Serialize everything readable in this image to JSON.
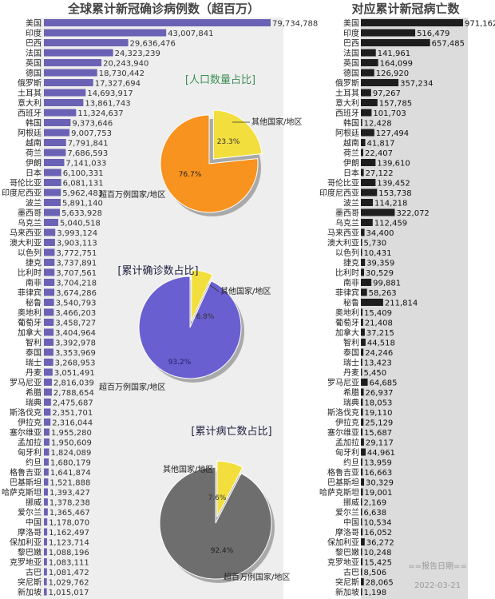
{
  "chart_data": [
    {
      "type": "bar",
      "title": "全球累计新冠确诊病例数（超百万）",
      "orientation": "horizontal",
      "color": "#6a62b4",
      "categories": [
        "美国",
        "印度",
        "巴西",
        "法国",
        "英国",
        "德国",
        "俄罗斯",
        "土耳其",
        "意大利",
        "西班牙",
        "韩国",
        "阿根廷",
        "越南",
        "荷兰",
        "伊朗",
        "日本",
        "哥伦比亚",
        "印度尼西亚",
        "波兰",
        "墨西哥",
        "乌克兰",
        "马来西亚",
        "澳大利亚",
        "以色列",
        "捷克",
        "比利时",
        "南非",
        "菲律宾",
        "秘鲁",
        "奥地利",
        "葡萄牙",
        "加拿大",
        "智利",
        "泰国",
        "瑞士",
        "丹麦",
        "罗马尼亚",
        "希腊",
        "瑞典",
        "斯洛伐克",
        "伊拉克",
        "塞尔维亚",
        "孟加拉",
        "匈牙利",
        "约旦",
        "格鲁吉亚",
        "巴基斯坦",
        "哈萨克斯坦",
        "挪威",
        "爱尔兰",
        "中国",
        "摩洛哥",
        "保加利亚",
        "黎巴嫩",
        "克罗地亚",
        "古巴",
        "突尼斯",
        "新加坡"
      ],
      "values": [
        79734788,
        43007841,
        29636476,
        24323239,
        20243940,
        18730442,
        17327694,
        14693917,
        13861743,
        11324637,
        9373646,
        9007753,
        7791841,
        7686593,
        7141033,
        6100331,
        6081131,
        5962483,
        5891140,
        5633928,
        5040518,
        3993124,
        3903113,
        3772751,
        3737891,
        3707561,
        3704218,
        3674286,
        3540793,
        3466203,
        3458727,
        3404964,
        3392978,
        3353969,
        3268953,
        3051491,
        2816039,
        2788654,
        2475687,
        2351701,
        2316044,
        1955280,
        1950609,
        1824089,
        1680179,
        1641874,
        1521888,
        1393427,
        1378238,
        1365467,
        1178070,
        1162497,
        1123714,
        1088196,
        1083111,
        1081472,
        1029762,
        1015017
      ],
      "value_labels": [
        "79,734,788",
        "43,007,841",
        "29,636,476",
        "24,323,239",
        "20,243,940",
        "18,730,442",
        "17,327,694",
        "14,693,917",
        "13,861,743",
        "11,324,637",
        "9,373,646",
        "9,007,753",
        "7,791,841",
        "7,686,593",
        "7,141,033",
        "6,100,331",
        "6,081,131",
        "5,962,483",
        "5,891,140",
        "5,633,928",
        "5,040,518",
        "3,993,124",
        "3,903,113",
        "3,772,751",
        "3,737,891",
        "3,707,561",
        "3,704,218",
        "3,674,286",
        "3,540,793",
        "3,466,203",
        "3,458,727",
        "3,404,964",
        "3,392,978",
        "3,353,969",
        "3,268,953",
        "3,051,491",
        "2,816,039",
        "2,788,654",
        "2,475,687",
        "2,351,701",
        "2,316,044",
        "1,955,280",
        "1,950,609",
        "1,824,089",
        "1,680,179",
        "1,641,874",
        "1,521,888",
        "1,393,427",
        "1,378,238",
        "1,365,467",
        "1,178,070",
        "1,162,497",
        "1,123,714",
        "1,088,196",
        "1,083,111",
        "1,081,472",
        "1,029,762",
        "1,015,017"
      ]
    },
    {
      "type": "bar",
      "title": "对应累计新冠病亡数",
      "orientation": "horizontal",
      "color": "#1e1e1e",
      "categories": [
        "美国",
        "印度",
        "巴西",
        "法国",
        "英国",
        "德国",
        "俄罗斯",
        "土耳其",
        "意大利",
        "西班牙",
        "韩国",
        "阿根廷",
        "越南",
        "荷兰",
        "伊朗",
        "日本",
        "哥伦比亚",
        "印度尼西亚",
        "波兰",
        "墨西哥",
        "乌克兰",
        "马来西亚",
        "澳大利亚",
        "以色列",
        "捷克",
        "比利时",
        "南非",
        "菲律宾",
        "秘鲁",
        "奥地利",
        "葡萄牙",
        "加拿大",
        "智利",
        "泰国",
        "瑞士",
        "丹麦",
        "罗马尼亚",
        "希腊",
        "瑞典",
        "斯洛伐克",
        "伊拉克",
        "塞尔维亚",
        "孟加拉",
        "匈牙利",
        "约旦",
        "格鲁吉亚",
        "巴基斯坦",
        "哈萨克斯坦",
        "挪威",
        "爱尔兰",
        "中国",
        "摩洛哥",
        "保加利亚",
        "黎巴嫩",
        "克罗地亚",
        "古巴",
        "突尼斯",
        "新加坡"
      ],
      "values": [
        971162,
        516479,
        657485,
        141961,
        164099,
        126920,
        357234,
        97267,
        157785,
        101703,
        12428,
        127494,
        41817,
        22407,
        139610,
        27122,
        139452,
        153738,
        114218,
        322072,
        112459,
        34400,
        5730,
        10431,
        39359,
        30529,
        99881,
        58263,
        211814,
        15409,
        21408,
        37215,
        44518,
        24246,
        13423,
        5450,
        64685,
        26937,
        18053,
        19110,
        25129,
        15687,
        29117,
        44961,
        13959,
        16663,
        30329,
        19001,
        2169,
        6638,
        10534,
        16052,
        36272,
        10248,
        15425,
        8506,
        28065,
        1198
      ],
      "value_labels": [
        "971,162",
        "516,479",
        "657,485",
        "141,961",
        "164,099",
        "126,920",
        "357,234",
        "97,267",
        "157,785",
        "101,703",
        "12,428",
        "127,494",
        "41,817",
        "22,407",
        "139,610",
        "27,122",
        "139,452",
        "153,738",
        "114,218",
        "322,072",
        "112,459",
        "34,400",
        "5,730",
        "10,431",
        "39,359",
        "30,529",
        "99,881",
        "58,263",
        "211,814",
        "15,409",
        "21,408",
        "37,215",
        "44,518",
        "24,246",
        "13,423",
        "5,450",
        "64,685",
        "26,937",
        "18,053",
        "19,110",
        "25,129",
        "15,687",
        "29,117",
        "44,961",
        "13,959",
        "16,663",
        "30,329",
        "19,001",
        "2,169",
        "6,638",
        "10,534",
        "16,052",
        "36,272",
        "10,248",
        "15,425",
        "8,506",
        "28,065",
        "1,198"
      ]
    },
    {
      "type": "pie",
      "title": "[人口数量占比]",
      "slices": [
        {
          "label": "其他国家/地区",
          "value": 23.3,
          "pct_label": "23.3%",
          "color": "#f2df3e"
        },
        {
          "label": "超百万例国家/地区",
          "value": 76.7,
          "pct_label": "76.7%",
          "color": "#f7931e"
        }
      ]
    },
    {
      "type": "pie",
      "title": "[累计确诊数占比]",
      "slices": [
        {
          "label": "其他国家/地区",
          "value": 6.8,
          "pct_label": "6.8%",
          "color": "#f2df3e"
        },
        {
          "label": "超百万例国家/地区",
          "value": 93.2,
          "pct_label": "93.2%",
          "color": "#6a5fd0"
        }
      ]
    },
    {
      "type": "pie",
      "title": "[累计病亡数占比]",
      "slices": [
        {
          "label": "其他国家/地区",
          "value": 7.6,
          "pct_label": "7.6%",
          "color": "#f2df3e"
        },
        {
          "label": "超百万例国家/地区",
          "value": 92.4,
          "pct_label": "92.4%",
          "color": "#6e6e6e"
        }
      ]
    }
  ],
  "report": {
    "label": "==报告日期==",
    "date": "2022-03-21"
  },
  "colors": {
    "left_panel_bg": "#eeeeee",
    "right_panel_bg": "#dcdcdc",
    "title_color": "#444444",
    "label_color": "#222222",
    "pie_title_green": "#3f8f55",
    "pie_title_dark": "#222244"
  }
}
